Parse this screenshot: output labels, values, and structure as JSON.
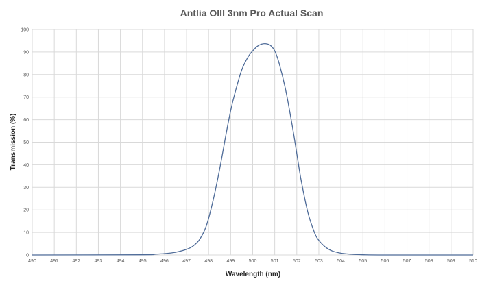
{
  "chart_data": {
    "type": "line",
    "title": "Antlia OIII 3nm Pro Actual Scan",
    "xlabel": "Wavelength (nm)",
    "ylabel": "Transmission (%)",
    "xlim": [
      490,
      510
    ],
    "ylim": [
      0,
      100
    ],
    "xticks": [
      490,
      491,
      492,
      493,
      494,
      495,
      496,
      497,
      498,
      499,
      500,
      501,
      502,
      503,
      504,
      505,
      506,
      507,
      508,
      509,
      510
    ],
    "yticks": [
      0,
      10,
      20,
      30,
      40,
      50,
      60,
      70,
      80,
      90,
      100
    ],
    "grid": true,
    "legend": "none",
    "color": "#4e6b98",
    "series": [
      {
        "x": [
          490,
          495,
          495.5,
          496,
          496.5,
          497,
          497.3,
          497.6,
          497.9,
          498.2,
          498.5,
          498.8,
          499.0,
          499.2,
          499.5,
          499.8,
          500.0,
          500.2,
          500.4,
          500.6,
          500.8,
          501.0,
          501.2,
          501.5,
          501.8,
          502.0,
          502.2,
          502.5,
          502.8,
          503.0,
          503.3,
          503.6,
          504.0,
          504.5,
          505.0,
          506.0,
          510
        ],
        "y": [
          0,
          0.1,
          0.3,
          0.6,
          1.2,
          2.5,
          4.0,
          7.0,
          13.0,
          24.0,
          38.0,
          54.0,
          64.0,
          72.0,
          82.0,
          88.0,
          90.5,
          92.5,
          93.5,
          93.7,
          93.0,
          90.5,
          85.0,
          73.0,
          57.0,
          45.0,
          33.0,
          19.0,
          10.0,
          6.5,
          3.5,
          1.8,
          0.8,
          0.3,
          0.1,
          0,
          0
        ]
      }
    ]
  }
}
